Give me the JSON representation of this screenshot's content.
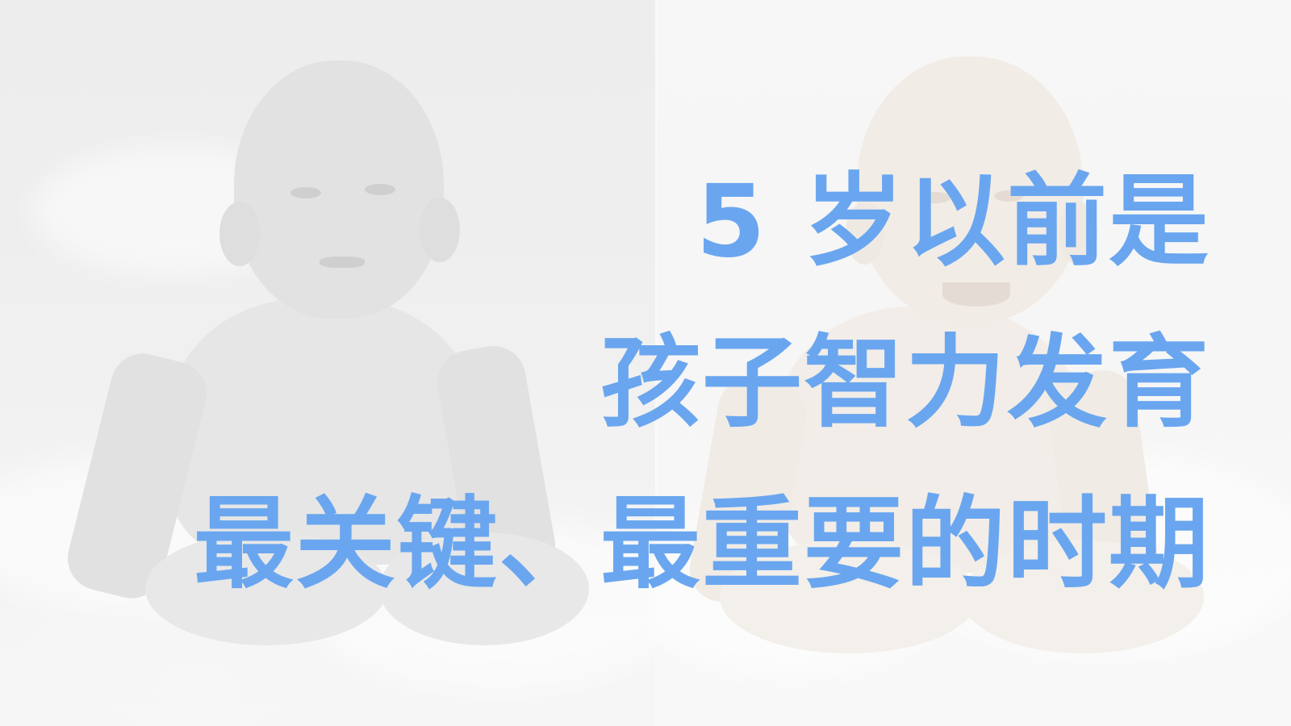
{
  "slide": {
    "background": "#f1f1f1",
    "text_color": "#6aa6ef",
    "lines": [
      "5 岁以前是",
      "孩子智力发育",
      "最关键、最重要的时期"
    ]
  },
  "images": {
    "left": "baby-photo-grayscale",
    "right": "baby-photo-color-faded"
  }
}
